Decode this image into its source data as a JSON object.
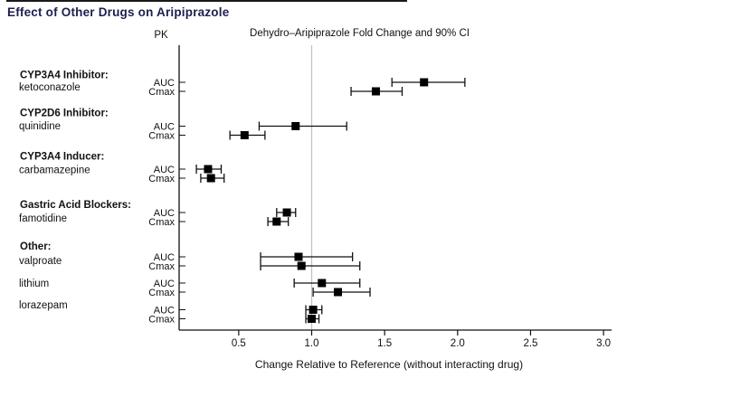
{
  "figure": {
    "title": "Effect of Other Drugs on Aripiprazole"
  },
  "colors": {
    "title_text": "#1e1e4f",
    "axis_line": "#111111",
    "reference_line": "#c2c2c2",
    "marker": "#000000"
  },
  "chart_data": {
    "type": "scatter",
    "subtype": "forest-plot-with-error-bars",
    "title": "Effect of Other Drugs on Aripiprazole",
    "column_headers": {
      "pk": "PK",
      "ci": "Dehydro–Aripiprazole Fold Change and 90% CI"
    },
    "xlabel": "Change Relative to Reference (without interacting drug)",
    "x_ticks": [
      {
        "v": 0.5,
        "label": "0.5"
      },
      {
        "v": 1.0,
        "label": "1.0"
      },
      {
        "v": 1.5,
        "label": "1.5"
      },
      {
        "v": 2.0,
        "label": "2.0"
      },
      {
        "v": 2.5,
        "label": "2.5"
      },
      {
        "v": 3.0,
        "label": "3.0"
      }
    ],
    "xlim": [
      0.09,
      3.06
    ],
    "reference_line_x": 1.0,
    "grid": false,
    "legend": "none",
    "groups": [
      {
        "group_label": "CYP3A4 Inhibitor:",
        "drugs": [
          {
            "name": "ketoconazole",
            "rows": [
              {
                "pk": "AUC",
                "value": 1.77,
                "ci_low": 1.55,
                "ci_high": 2.05
              },
              {
                "pk": "Cmax",
                "value": 1.44,
                "ci_low": 1.27,
                "ci_high": 1.62
              }
            ]
          }
        ]
      },
      {
        "group_label": "CYP2D6 Inhibitor:",
        "drugs": [
          {
            "name": "quinidine",
            "rows": [
              {
                "pk": "AUC",
                "value": 0.89,
                "ci_low": 0.64,
                "ci_high": 1.24
              },
              {
                "pk": "Cmax",
                "value": 0.54,
                "ci_low": 0.44,
                "ci_high": 0.68
              }
            ]
          }
        ]
      },
      {
        "group_label": "CYP3A4 Inducer:",
        "drugs": [
          {
            "name": "carbamazepine",
            "rows": [
              {
                "pk": "AUC",
                "value": 0.29,
                "ci_low": 0.21,
                "ci_high": 0.38
              },
              {
                "pk": "Cmax",
                "value": 0.31,
                "ci_low": 0.24,
                "ci_high": 0.4
              }
            ]
          }
        ]
      },
      {
        "group_label": "Gastric Acid Blockers:",
        "drugs": [
          {
            "name": "famotidine",
            "rows": [
              {
                "pk": "AUC",
                "value": 0.83,
                "ci_low": 0.76,
                "ci_high": 0.89
              },
              {
                "pk": "Cmax",
                "value": 0.76,
                "ci_low": 0.7,
                "ci_high": 0.84
              }
            ]
          }
        ]
      },
      {
        "group_label": "Other:",
        "drugs": [
          {
            "name": "valproate",
            "rows": [
              {
                "pk": "AUC",
                "value": 0.91,
                "ci_low": 0.65,
                "ci_high": 1.28
              },
              {
                "pk": "Cmax",
                "value": 0.93,
                "ci_low": 0.65,
                "ci_high": 1.33
              }
            ]
          },
          {
            "name": "lithium",
            "rows": [
              {
                "pk": "AUC",
                "value": 1.07,
                "ci_low": 0.88,
                "ci_high": 1.33
              },
              {
                "pk": "Cmax",
                "value": 1.18,
                "ci_low": 1.01,
                "ci_high": 1.4
              }
            ]
          },
          {
            "name": "lorazepam",
            "rows": [
              {
                "pk": "AUC",
                "value": 1.01,
                "ci_low": 0.96,
                "ci_high": 1.07
              },
              {
                "pk": "Cmax",
                "value": 1.0,
                "ci_low": 0.96,
                "ci_high": 1.05
              }
            ]
          }
        ]
      }
    ]
  }
}
